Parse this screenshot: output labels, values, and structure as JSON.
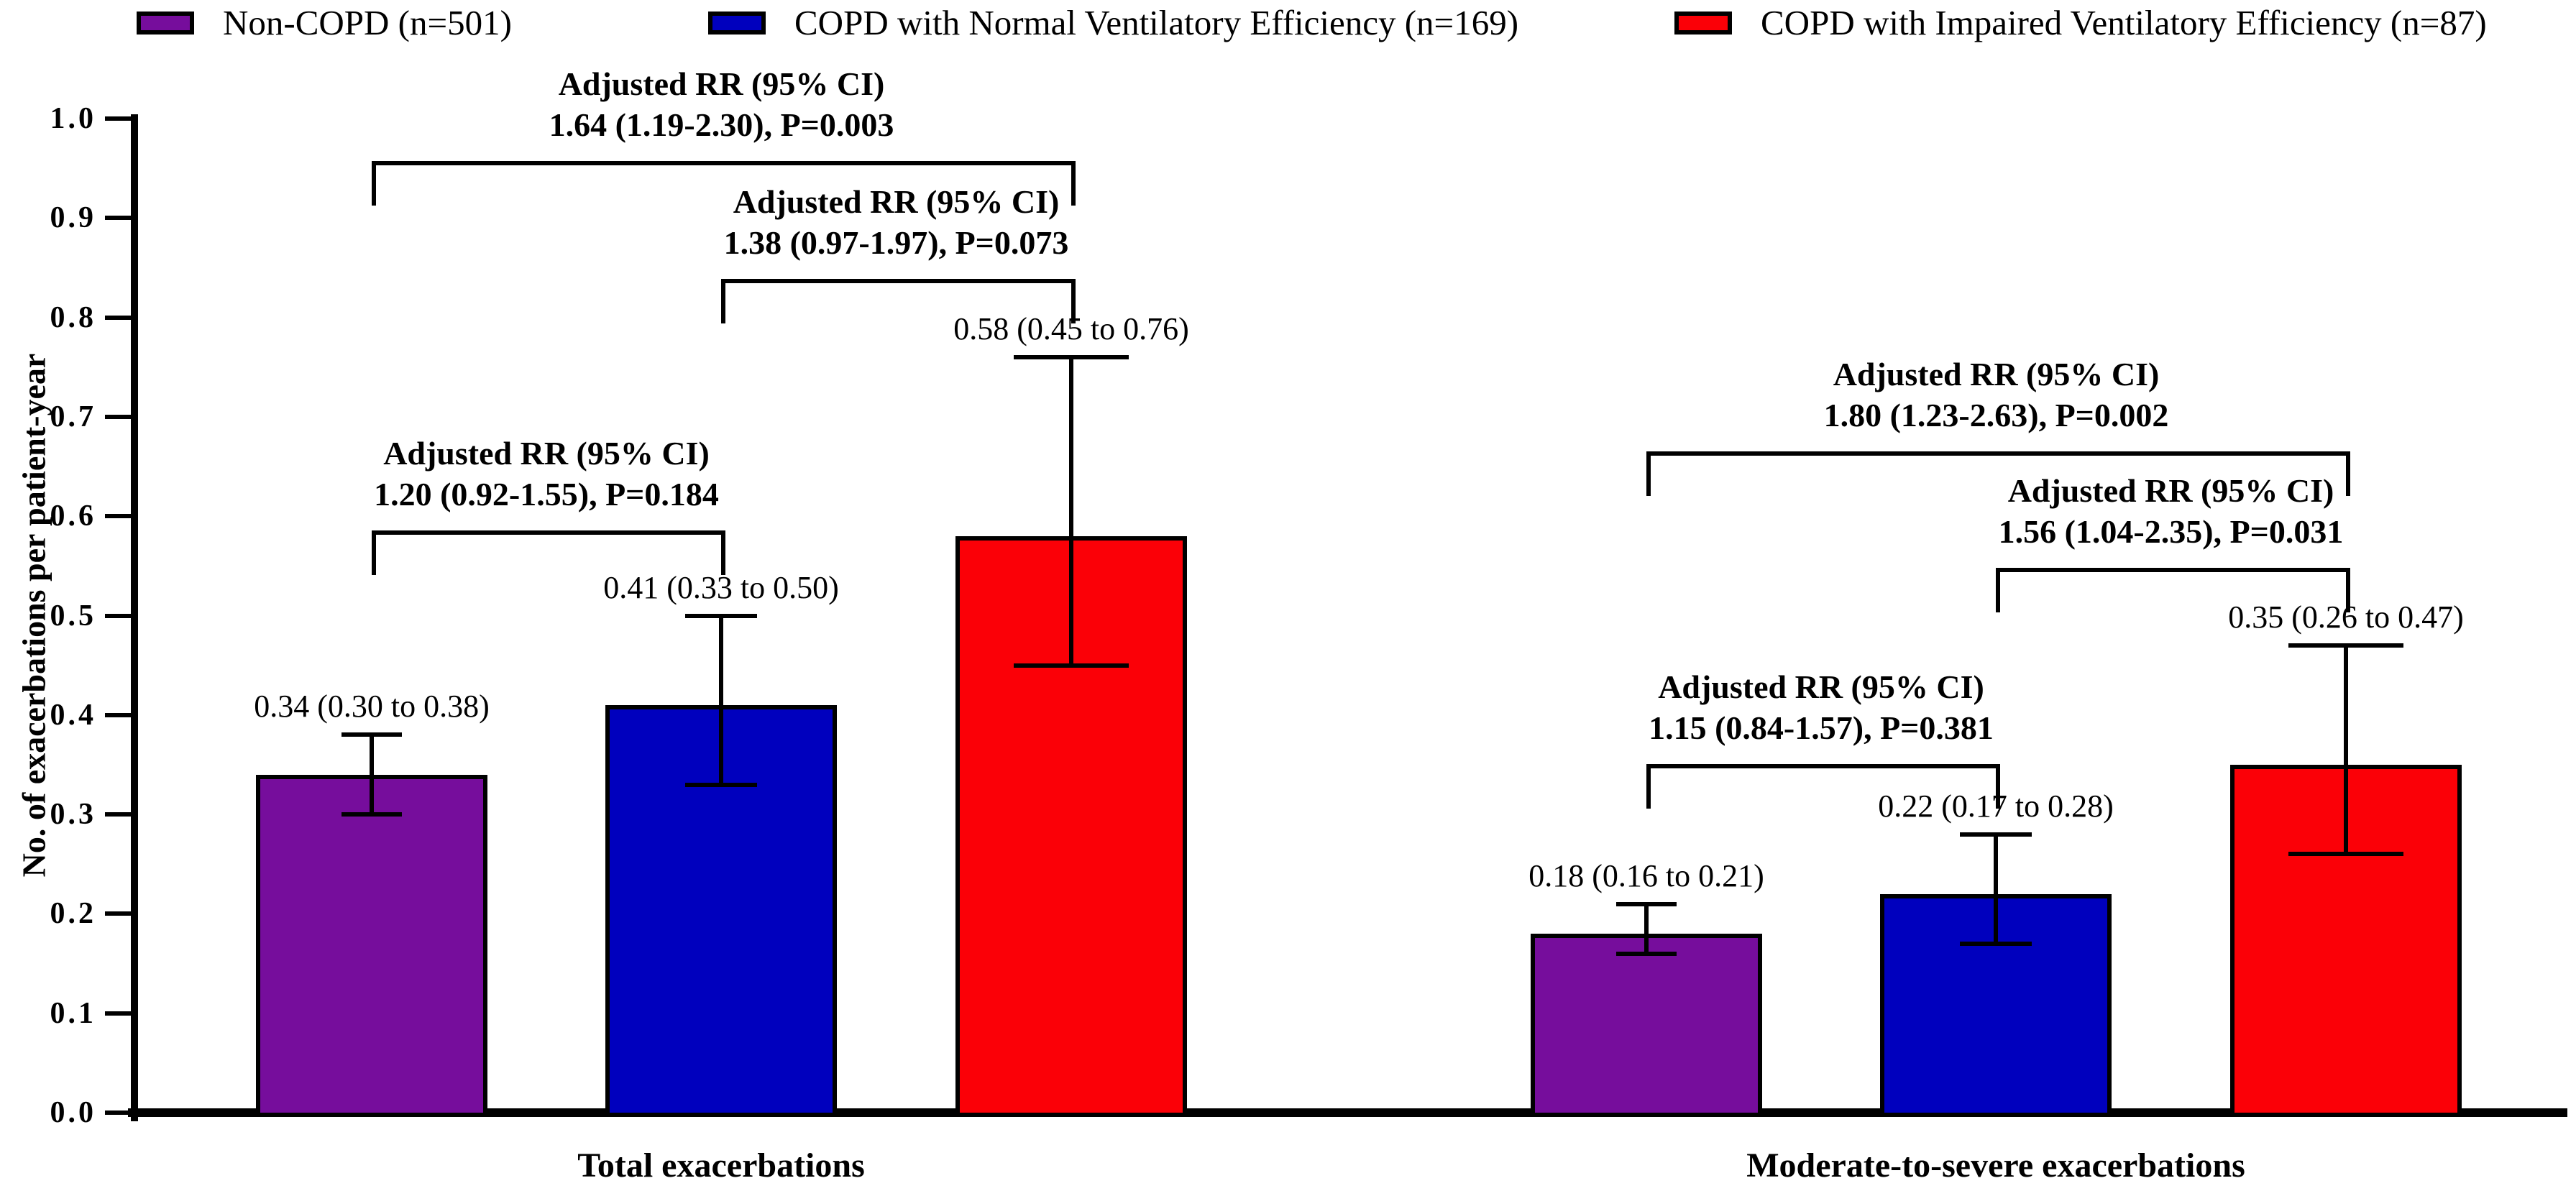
{
  "page": {
    "background": "#FFFFFF"
  },
  "legend": {
    "items": [
      {
        "label": "Non-COPD (n=501)",
        "color": "#760D9C"
      },
      {
        "label": "COPD with Normal Ventilatory Efficiency (n=169)",
        "color": "#0000BE"
      },
      {
        "label": "COPD with Impaired Ventilatory Efficiency (n=87)",
        "color": "#FB0007"
      }
    ]
  },
  "chart_data": {
    "type": "bar",
    "title": "",
    "ylabel": "No. of exacerbations per patient-year",
    "xlabel": "",
    "ylim": [
      0.0,
      1.0
    ],
    "ytick_step": 0.1,
    "ytick_labels": [
      "0.0",
      "0.1",
      "0.2",
      "0.3",
      "0.4",
      "0.5",
      "0.6",
      "0.7",
      "0.8",
      "0.9",
      "1.0"
    ],
    "grid": false,
    "legend_position": "top",
    "categories": [
      "Total exacerbations",
      "Moderate-to-severe exacerbations"
    ],
    "series": [
      {
        "name": "Non-COPD (n=501)",
        "color": "#760D9C",
        "values": [
          0.34,
          0.18
        ],
        "ci_low": [
          0.3,
          0.16
        ],
        "ci_high": [
          0.38,
          0.21
        ],
        "value_labels": [
          "0.34 (0.30 to 0.38)",
          "0.18 (0.16 to 0.21)"
        ]
      },
      {
        "name": "COPD with Normal Ventilatory Efficiency (n=169)",
        "color": "#0000BE",
        "values": [
          0.41,
          0.22
        ],
        "ci_low": [
          0.33,
          0.17
        ],
        "ci_high": [
          0.5,
          0.28
        ],
        "value_labels": [
          "0.41 (0.33 to 0.50)",
          "0.22 (0.17 to 0.28)"
        ]
      },
      {
        "name": "COPD with Impaired Ventilatory Efficiency (n=87)",
        "color": "#FB0007",
        "values": [
          0.58,
          0.35
        ],
        "ci_low": [
          0.45,
          0.26
        ],
        "ci_high": [
          0.76,
          0.47
        ],
        "value_labels": [
          "0.58 (0.45 to 0.76)",
          "0.35 (0.26 to 0.47)"
        ]
      }
    ],
    "comparisons": [
      {
        "category": 0,
        "from_series": 0,
        "to_series": 2,
        "label_line1": "Adjusted RR (95% CI)",
        "label_line2": "1.64 (1.19-2.30), P=0.003",
        "bracket_y": 0.957
      },
      {
        "category": 0,
        "from_series": 1,
        "to_series": 2,
        "label_line1": "Adjusted RR (95% CI)",
        "label_line2": "1.38 (0.97-1.97), P=0.073",
        "bracket_y": 0.839
      },
      {
        "category": 0,
        "from_series": 0,
        "to_series": 1,
        "label_line1": "Adjusted RR (95% CI)",
        "label_line2": "1.20 (0.92-1.55), P=0.184",
        "bracket_y": 0.586
      },
      {
        "category": 1,
        "from_series": 0,
        "to_series": 2,
        "label_line1": "Adjusted RR (95% CI)",
        "label_line2": "1.80 (1.23-2.63), P=0.002",
        "bracket_y": 0.665
      },
      {
        "category": 1,
        "from_series": 1,
        "to_series": 2,
        "label_line1": "Adjusted RR (95% CI)",
        "label_line2": "1.56 (1.04-2.35), P=0.031",
        "bracket_y": 0.548
      },
      {
        "category": 1,
        "from_series": 0,
        "to_series": 1,
        "label_line1": "Adjusted RR (95% CI)",
        "label_line2": "1.15 (0.84-1.57), P=0.381",
        "bracket_y": 0.351
      }
    ]
  }
}
